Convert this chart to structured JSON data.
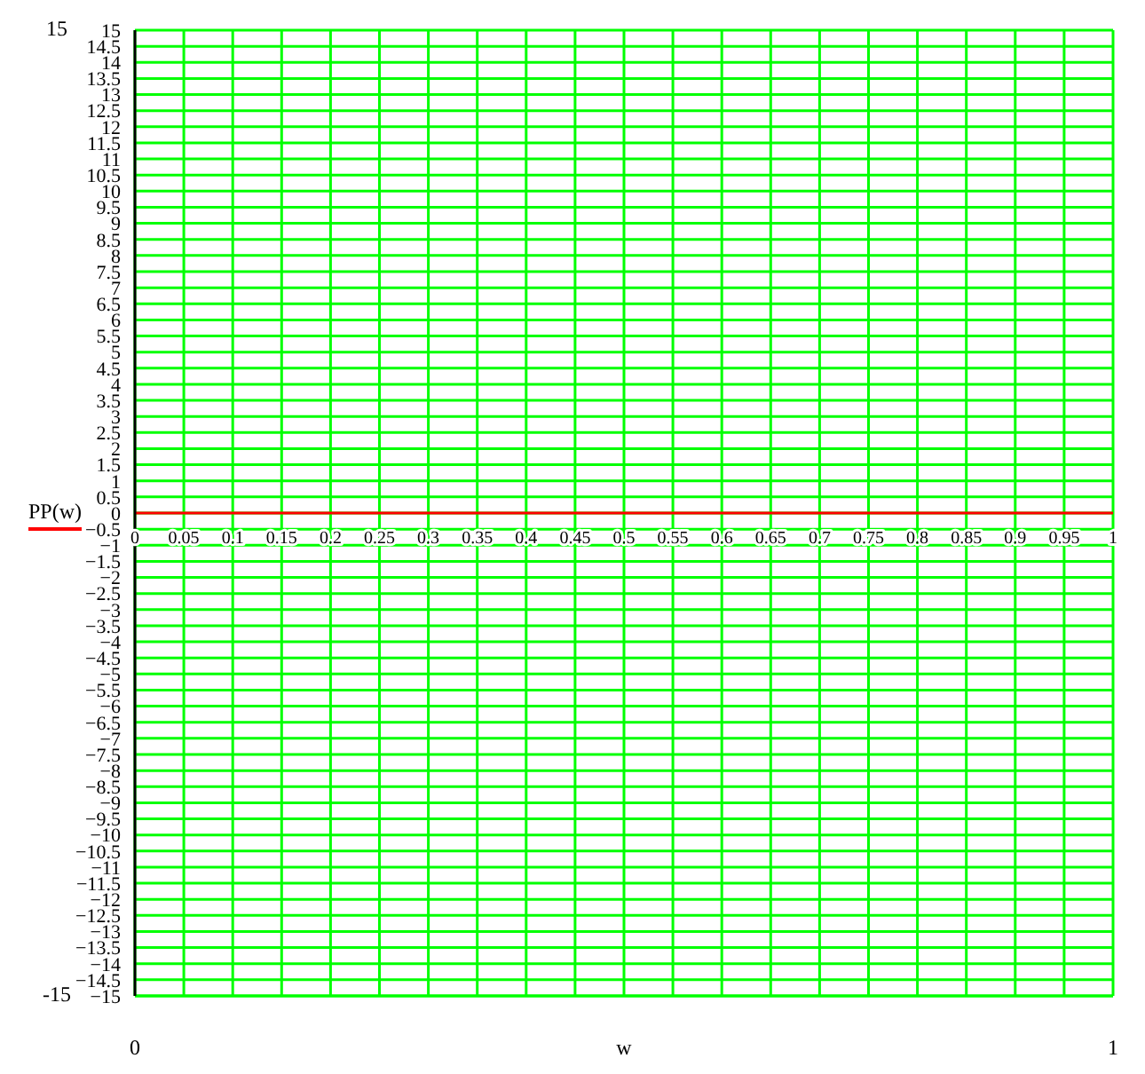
{
  "chart_data": {
    "type": "line",
    "xlabel": "w",
    "ylabel": "PP(w)",
    "x": [
      0,
      1
    ],
    "series": [
      {
        "color": "#ff0000",
        "values": [
          0,
          0
        ]
      }
    ],
    "xlim": [
      0,
      1
    ],
    "ylim": [
      -15,
      15
    ],
    "xticks": [
      0,
      0.05,
      0.1,
      0.15,
      0.2,
      0.25,
      0.3,
      0.35,
      0.4,
      0.45,
      0.5,
      0.55,
      0.6,
      0.65,
      0.7,
      0.75,
      0.8,
      0.85,
      0.9,
      0.95,
      1
    ],
    "yticks": [
      -15,
      -14.5,
      -14,
      -13.5,
      -13,
      -12.5,
      -12,
      -11.5,
      -11,
      -10.5,
      -10,
      -9.5,
      -9,
      -8.5,
      -8,
      -7.5,
      -7,
      -6.5,
      -6,
      -5.5,
      -5,
      -4.5,
      -4,
      -3.5,
      -3,
      -2.5,
      -2,
      -1.5,
      -1,
      -0.5,
      0,
      0.5,
      1,
      1.5,
      2,
      2.5,
      3,
      3.5,
      4,
      4.5,
      5,
      5.5,
      6,
      6.5,
      7,
      7.5,
      8,
      8.5,
      9,
      9.5,
      10,
      10.5,
      11,
      11.5,
      12,
      12.5,
      13,
      13.5,
      14,
      14.5,
      15
    ],
    "annotations": [
      "15",
      "-15",
      "0",
      "1"
    ],
    "grid": true,
    "marker": "none",
    "line_style": "solid"
  }
}
